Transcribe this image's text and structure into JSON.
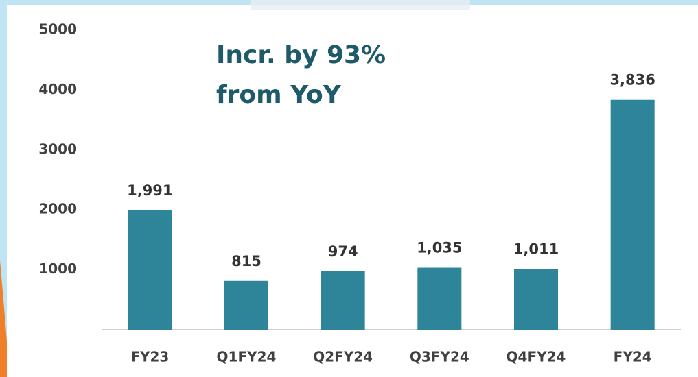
{
  "chart_data": {
    "type": "bar",
    "annotation": [
      "Incr. by 93%",
      "from YoY"
    ],
    "categories": [
      "FY23",
      "Q1FY24",
      "Q2FY24",
      "Q3FY24",
      "Q4FY24",
      "FY24"
    ],
    "values": [
      1991,
      815,
      974,
      1035,
      1011,
      3836
    ],
    "value_labels": [
      "1,991",
      "815",
      "974",
      "1,035",
      "1,011",
      "3,836"
    ],
    "color": "#2e859a",
    "ylim": [
      0,
      5000
    ],
    "yticks": [
      1000,
      2000,
      3000,
      4000,
      5000
    ],
    "grid": false
  }
}
